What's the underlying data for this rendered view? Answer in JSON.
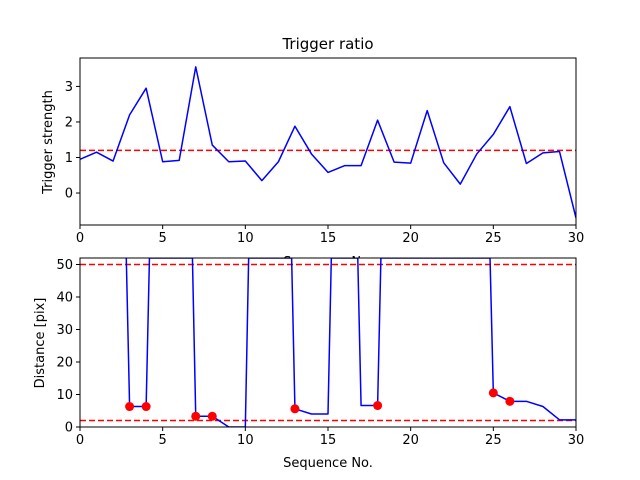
{
  "chart_data": [
    {
      "type": "line",
      "title": "Trigger ratio",
      "xlabel": "Sequence No.",
      "ylabel": "Trigger strength",
      "xlim": [
        0,
        30
      ],
      "ylim": [
        -0.9,
        3.8
      ],
      "xticks": [
        0,
        5,
        10,
        15,
        20,
        25,
        30
      ],
      "yticks": [
        0,
        1,
        2,
        3
      ],
      "grid": false,
      "series": [
        {
          "color": "#0000ff",
          "style": "solid",
          "x": [
            0,
            1,
            2,
            3,
            4,
            5,
            6,
            7,
            8,
            9,
            10,
            11,
            12,
            13,
            14,
            15,
            16,
            17,
            18,
            19,
            20,
            21,
            22,
            23,
            24,
            25,
            26,
            27,
            28,
            29,
            30
          ],
          "y": [
            0.95,
            1.15,
            0.9,
            2.2,
            2.95,
            0.88,
            0.92,
            3.55,
            1.35,
            0.88,
            0.9,
            0.35,
            0.88,
            1.88,
            1.1,
            0.58,
            0.77,
            0.77,
            2.05,
            0.87,
            0.84,
            2.32,
            0.85,
            0.25,
            1.1,
            1.65,
            2.43,
            0.83,
            1.13,
            1.17,
            -0.7
          ]
        }
      ],
      "hlines": [
        {
          "y": 1.2,
          "color": "#ff0000",
          "style": "dashed"
        }
      ]
    },
    {
      "type": "line",
      "title": "",
      "xlabel": "Sequence No.",
      "ylabel": "Distance [pix]",
      "xlim": [
        0,
        30
      ],
      "ylim": [
        0,
        52
      ],
      "xticks": [
        0,
        5,
        10,
        15,
        20,
        25,
        30
      ],
      "yticks": [
        0,
        10,
        20,
        30,
        40,
        50
      ],
      "grid": false,
      "series": [
        {
          "color": "#0000ff",
          "style": "solid",
          "x": [
            2.8,
            3,
            4,
            4.2,
            6.8,
            7,
            8,
            9,
            10,
            10.2,
            12.8,
            13,
            14,
            15,
            15.2,
            16.8,
            17,
            18,
            18.2,
            24.8,
            25,
            26,
            27,
            28,
            29,
            30
          ],
          "y": [
            52,
            6.3,
            6.3,
            52,
            52,
            3.3,
            3.3,
            0,
            0,
            52,
            52,
            5.6,
            4,
            4,
            52,
            52,
            6.6,
            6.6,
            52,
            52,
            10.5,
            7.9,
            7.9,
            6.3,
            2.2,
            2.2
          ]
        }
      ],
      "markers": {
        "color": "#ff0000",
        "x": [
          3,
          4,
          7,
          8,
          13,
          18,
          25,
          26
        ],
        "y": [
          6.3,
          6.3,
          3.3,
          3.3,
          5.6,
          6.6,
          10.5,
          7.9
        ]
      },
      "hlines": [
        {
          "y": 50,
          "color": "#ff0000",
          "style": "dashed"
        },
        {
          "y": 2,
          "color": "#ff0000",
          "style": "dashed"
        }
      ]
    }
  ]
}
